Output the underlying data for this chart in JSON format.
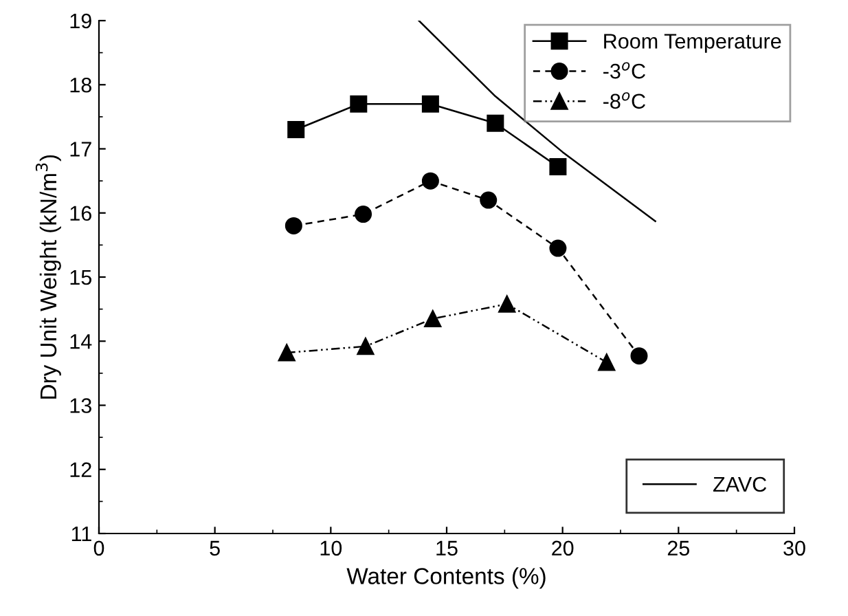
{
  "chart_data": {
    "type": "line",
    "xlabel": "Water Contents (%)",
    "ylabel": "Dry Unit Weight (kN/m$^{3}$)",
    "series": [
      {
        "name": "Room Temperature",
        "color": "#000000",
        "marker": "square",
        "line_style": "solid",
        "x": [
          8.5,
          11.2,
          14.3,
          17.1,
          19.8
        ],
        "values": [
          17.3,
          17.7,
          17.7,
          17.4,
          16.72
        ]
      },
      {
        "name": "-3$^{o}$C",
        "color": "#000000",
        "marker": "circle",
        "line_style": "dashed",
        "x": [
          8.4,
          11.4,
          14.3,
          16.8,
          19.8,
          23.3
        ],
        "values": [
          15.8,
          15.98,
          16.5,
          16.2,
          15.45,
          13.77
        ]
      },
      {
        "name": "-8$^{o}$C",
        "color": "#000000",
        "marker": "triangle",
        "line_style": "dashdot",
        "x": [
          8.1,
          11.5,
          14.4,
          17.6,
          21.9
        ],
        "values": [
          13.82,
          13.92,
          14.35,
          14.58,
          13.67
        ]
      },
      {
        "name": "ZAVC",
        "color": "#000000",
        "marker": "none",
        "line_style": "solid",
        "x": [
          13.8,
          17.1,
          20.0,
          24.0
        ],
        "values": [
          19.0,
          17.82,
          16.95,
          15.87
        ]
      }
    ],
    "xlim": [
      0,
      30
    ],
    "ylim": [
      11,
      19
    ],
    "xticks": [
      0,
      5,
      10,
      15,
      20,
      25,
      30
    ],
    "yticks": [
      11,
      12,
      13,
      14,
      15,
      16,
      17,
      18,
      19
    ],
    "grid": false,
    "legend": "top right"
  }
}
